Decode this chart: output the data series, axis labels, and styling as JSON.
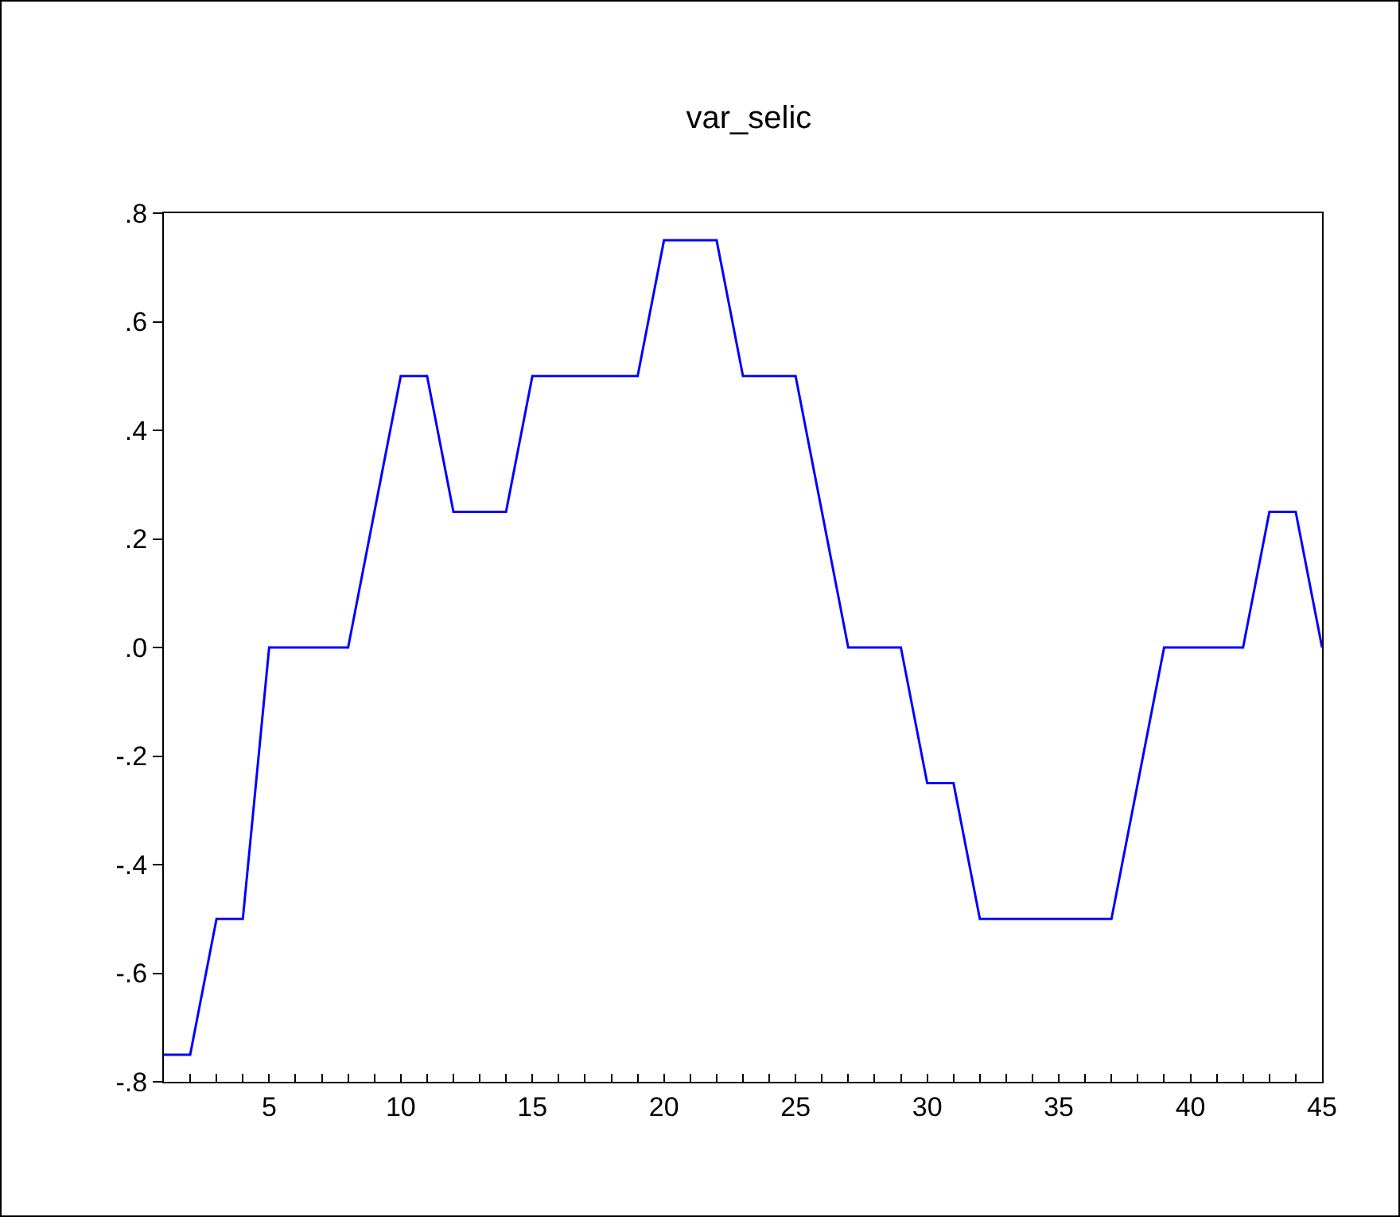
{
  "chart_data": {
    "type": "line",
    "title": "var_selic",
    "x": [
      1,
      2,
      3,
      4,
      5,
      6,
      7,
      8,
      9,
      10,
      11,
      12,
      13,
      14,
      15,
      16,
      17,
      18,
      19,
      20,
      21,
      22,
      23,
      24,
      25,
      26,
      27,
      28,
      29,
      30,
      31,
      32,
      33,
      34,
      35,
      36,
      37,
      38,
      39,
      40,
      41,
      42,
      43,
      44,
      45
    ],
    "series": [
      {
        "color": "#0000ff",
        "values": [
          -0.75,
          -0.75,
          -0.5,
          -0.5,
          0,
          0,
          0,
          0,
          0.25,
          0.5,
          0.5,
          0.25,
          0.25,
          0.25,
          0.5,
          0.5,
          0.5,
          0.5,
          0.5,
          0.75,
          0.75,
          0.75,
          0.5,
          0.5,
          0.5,
          0.25,
          0,
          0,
          0,
          -0.25,
          -0.25,
          -0.5,
          -0.5,
          -0.5,
          -0.5,
          -0.5,
          -0.5,
          -0.25,
          0,
          0,
          0,
          0,
          0.25,
          0.25,
          0
        ]
      }
    ],
    "xlim": [
      1,
      45
    ],
    "xticks": [
      {
        "value": 1,
        "label": null
      },
      {
        "value": 2,
        "label": null
      },
      {
        "value": 3,
        "label": null
      },
      {
        "value": 4,
        "label": null
      },
      5,
      {
        "value": 6,
        "label": null
      },
      {
        "value": 7,
        "label": null
      },
      {
        "value": 8,
        "label": null
      },
      {
        "value": 9,
        "label": null
      },
      10,
      {
        "value": 11,
        "label": null
      },
      {
        "value": 12,
        "label": null
      },
      {
        "value": 13,
        "label": null
      },
      {
        "value": 14,
        "label": null
      },
      15,
      {
        "value": 16,
        "label": null
      },
      {
        "value": 17,
        "label": null
      },
      {
        "value": 18,
        "label": null
      },
      {
        "value": 19,
        "label": null
      },
      20,
      {
        "value": 21,
        "label": null
      },
      {
        "value": 22,
        "label": null
      },
      {
        "value": 23,
        "label": null
      },
      {
        "value": 24,
        "label": null
      },
      25,
      {
        "value": 26,
        "label": null
      },
      {
        "value": 27,
        "label": null
      },
      {
        "value": 28,
        "label": null
      },
      {
        "value": 29,
        "label": null
      },
      30,
      {
        "value": 31,
        "label": null
      },
      {
        "value": 32,
        "label": null
      },
      {
        "value": 33,
        "label": null
      },
      {
        "value": 34,
        "label": null
      },
      35,
      {
        "value": 36,
        "label": null
      },
      {
        "value": 37,
        "label": null
      },
      {
        "value": 38,
        "label": null
      },
      {
        "value": 39,
        "label": null
      },
      40,
      {
        "value": 41,
        "label": null
      },
      {
        "value": 42,
        "label": null
      },
      {
        "value": 43,
        "label": null
      },
      {
        "value": 44,
        "label": null
      },
      45
    ],
    "ylim": [
      -0.8,
      0.8
    ],
    "yticks": [
      {
        "value": -0.8,
        "label": "-.8"
      },
      {
        "value": -0.6,
        "label": "-.6"
      },
      {
        "value": -0.4,
        "label": "-.4"
      },
      {
        "value": -0.2,
        "label": "-.2"
      },
      {
        "value": 0,
        "label": ".0"
      },
      {
        "value": 0.2,
        "label": ".2"
      },
      {
        "value": 0.4,
        "label": ".4"
      },
      {
        "value": 0.6,
        "label": ".6"
      },
      {
        "value": 0.8,
        "label": ".8"
      }
    ],
    "grid": false,
    "marker": "none",
    "line_style": "solid"
  }
}
